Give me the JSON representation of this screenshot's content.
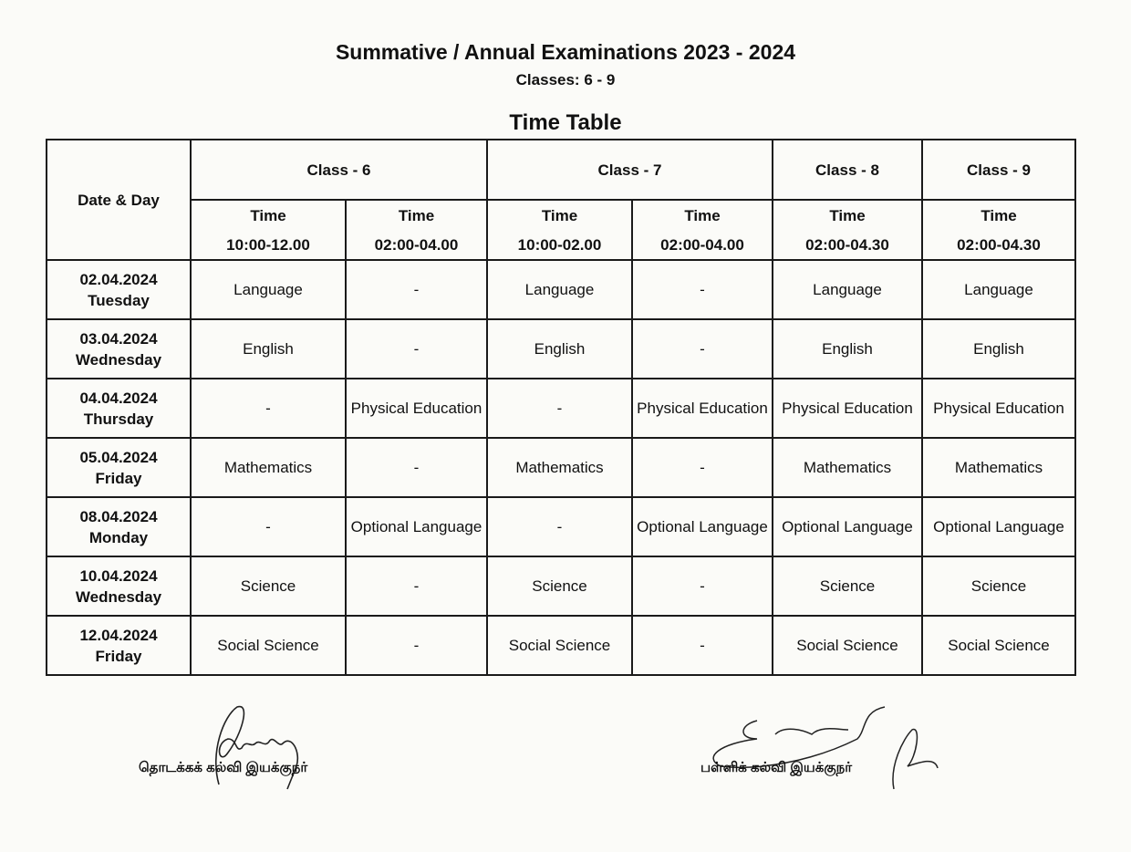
{
  "title": "Summative / Annual Examinations 2023 - 2024",
  "classes": "Classes: 6 - 9",
  "subtitle": "Time Table",
  "table": {
    "date_header": "Date & Day",
    "class_headers": [
      "Class - 6",
      "Class - 7",
      "Class - 8",
      "Class - 9"
    ],
    "time_label": "Time",
    "times": [
      "10:00-12.00",
      "02:00-04.00",
      "10:00-02.00",
      "02:00-04.00",
      "02:00-04.30",
      "02:00-04.30"
    ],
    "rows": [
      {
        "date": "02.04.2024",
        "day": "Tuesday",
        "cells": [
          "Language",
          "-",
          "Language",
          "-",
          "Language",
          "Language"
        ]
      },
      {
        "date": "03.04.2024",
        "day": "Wednesday",
        "cells": [
          "English",
          "-",
          "English",
          "-",
          "English",
          "English"
        ]
      },
      {
        "date": "04.04.2024",
        "day": "Thursday",
        "cells": [
          "-",
          "Physical Education",
          "-",
          "Physical Education",
          "Physical Education",
          "Physical Education"
        ]
      },
      {
        "date": "05.04.2024",
        "day": "Friday",
        "cells": [
          "Mathematics",
          "-",
          "Mathematics",
          "-",
          "Mathematics",
          "Mathematics"
        ]
      },
      {
        "date": "08.04.2024",
        "day": "Monday",
        "cells": [
          "-",
          "Optional Language",
          "-",
          "Optional Language",
          "Optional Language",
          "Optional Language"
        ]
      },
      {
        "date": "10.04.2024",
        "day": "Wednesday",
        "cells": [
          "Science",
          "-",
          "Science",
          "-",
          "Science",
          "Science"
        ]
      },
      {
        "date": "12.04.2024",
        "day": "Friday",
        "cells": [
          "Social Science",
          "-",
          "Social Science",
          "-",
          "Social Science",
          "Social Science"
        ]
      }
    ]
  },
  "signatures": {
    "left": "தொடக்கக் கல்வி இயக்குநர்",
    "right": "பள்ளிக் கல்வி இயக்குநர்"
  }
}
